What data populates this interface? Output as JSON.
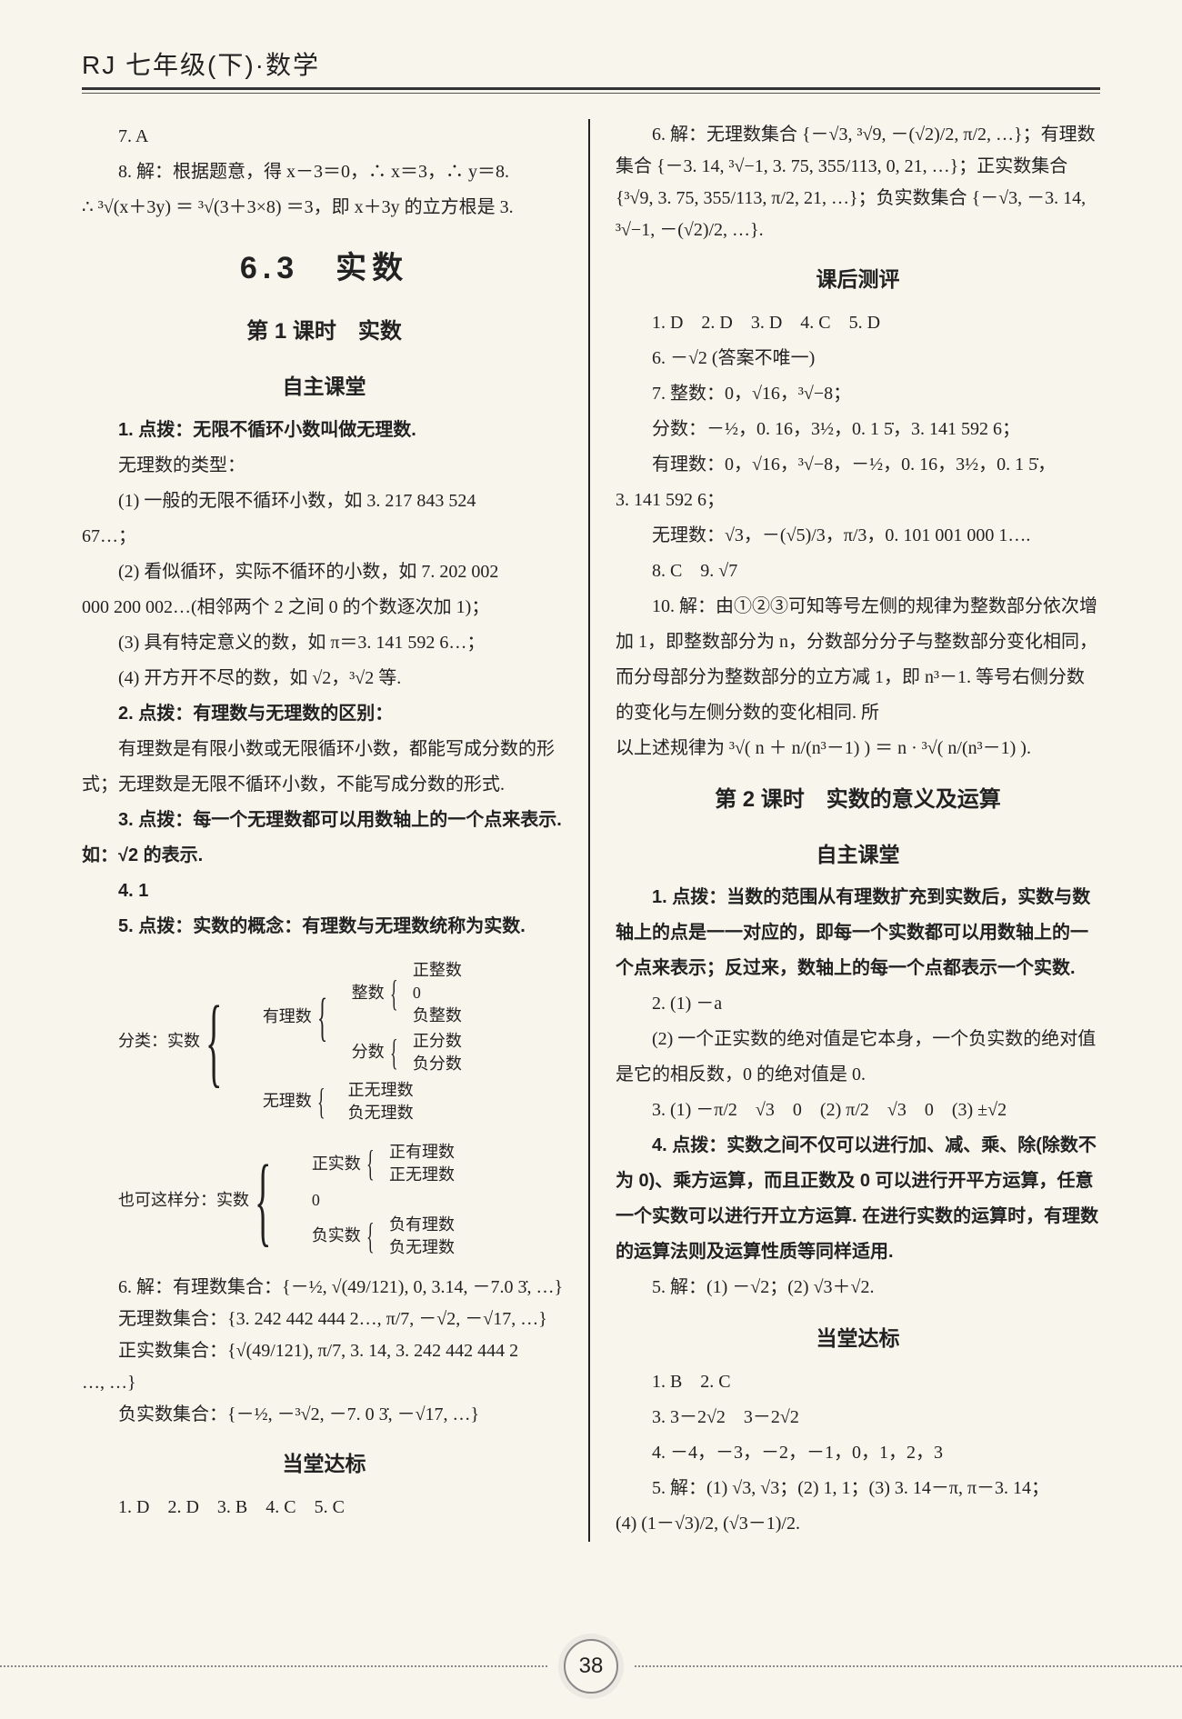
{
  "header": {
    "title": "RJ 七年级(下)·数学"
  },
  "page_number": "38",
  "left": {
    "l01": "7. A",
    "l02_pre": "8. 解：根据题意，得 x－3＝0，∴ x＝3，∴ y＝8.",
    "l03": "∴ ³√(x＋3y) ＝ ³√(3＋3×8) ＝3，即 x＋3y 的立方根是 3.",
    "title_63": "6.3　实数",
    "lesson1": "第 1 课时　实数",
    "zizhu": "自主课堂",
    "l04": "1. 点拨：无限不循环小数叫做无理数.",
    "l05": "无理数的类型：",
    "l06a": "(1) 一般的无限不循环小数，如 3. 217 843 524",
    "l06b": "67…；",
    "l07a": "(2) 看似循环，实际不循环的小数，如 7. 202 002",
    "l07b": "000 200 002…(相邻两个 2 之间 0 的个数逐次加 1)；",
    "l08": "(3) 具有特定意义的数，如 π＝3. 141 592 6…；",
    "l09": "(4) 开方开不尽的数，如 √2，³√2 等.",
    "l10": "2. 点拨：有理数与无理数的区别：",
    "l11": "有理数是有限小数或无限循环小数，都能写成分数的形式；无理数是无限不循环小数，不能写成分数的形式.",
    "l12": "3. 点拨：每一个无理数都可以用数轴上的一个点来表示. 如：√2 的表示.",
    "l13": "4. 1",
    "l14": "5. 点拨：实数的概念：有理数与无理数统称为实数.",
    "tree1_label": "分类：实数",
    "tree1": {
      "a": "有理数",
      "a1": "整数",
      "a1a": "正整数",
      "a1b": "0",
      "a1c": "负整数",
      "a2": "分数",
      "a2a": "正分数",
      "a2b": "负分数",
      "b": "无理数",
      "b1": "正无理数",
      "b2": "负无理数"
    },
    "tree2_label": "也可这样分：实数",
    "tree2": {
      "a": "正实数",
      "a1": "正有理数",
      "a2": "正无理数",
      "b": "0",
      "c": "负实数",
      "c1": "负有理数",
      "c2": "负无理数"
    },
    "l15": "6. 解：有理数集合：{－½, √(49/121), 0, 3.14, －7.0 3̇, …}",
    "l16": "无理数集合：{3. 242 442 444 2…, π/7, －√2, －√17, …}",
    "l17a": "正实数集合：{√(49/121), π/7, 3. 14, 3. 242 442 444 2",
    "l17b": "…, …}",
    "l18": "负实数集合：{－½, －³√2, －7. 0 3̇, －√17, …}",
    "dangtang": "当堂达标",
    "l19": "1. D　2. D　3. B　4. C　5. C"
  },
  "right": {
    "r01a": "6. 解：无理数集合 {－√3, ³√9, －(√2)/2, π/2, …}；有理数",
    "r01b": "集合 {－3. 14, ³√−1, 3. 75, 355/113, 0, 21, …}；正实数集合",
    "r01c": "{³√9, 3. 75, 355/113, π/2, 21, …}；负实数集合 {－√3, －3. 14,",
    "r01d": "³√−1, －(√2)/2, …}.",
    "kehou": "课后测评",
    "r02": "1. D　2. D　3. D　4. C　5. D",
    "r03": "6. －√2 (答案不唯一)",
    "r04": "7. 整数：0，√16，³√−8；",
    "r05": "分数：－½，0. 16，3½，0. 1 5̇，3. 141 592 6；",
    "r06": "有理数：0，√16，³√−8，－½，0. 16，3½，0. 1 5̇，",
    "r06b": "3. 141 592 6；",
    "r07": "无理数：√3，－(√5)/3，π/3，0. 101 001 000 1….",
    "r08": "8. C　9. √7",
    "r09": "10. 解：由①②③可知等号左侧的规律为整数部分依次增加 1，即整数部分为 n，分数部分分子与整数部分变化相同，而分母部分为整数部分的立方减 1，即 n³－1. 等号右侧分数的变化与左侧分数的变化相同. 所",
    "r09b": "以上述规律为 ³√( n ＋ n/(n³－1) ) ＝ n · ³√( n/(n³－1) ).",
    "lesson2": "第 2 课时　实数的意义及运算",
    "zizhu2": "自主课堂",
    "r10": "1. 点拨：当数的范围从有理数扩充到实数后，实数与数轴上的点是一一对应的，即每一个实数都可以用数轴上的一个点来表示；反过来，数轴上的每一个点都表示一个实数.",
    "r11": "2. (1) －a",
    "r12": "(2) 一个正实数的绝对值是它本身，一个负实数的绝对值是它的相反数，0 的绝对值是 0.",
    "r13": "3. (1) －π/2　√3　0　(2) π/2　√3　0　(3) ±√2",
    "r14": "4. 点拨：实数之间不仅可以进行加、减、乘、除(除数不为 0)、乘方运算，而且正数及 0 可以进行开平方运算，任意一个实数可以进行开立方运算. 在进行实数的运算时，有理数的运算法则及运算性质等同样适用.",
    "r15": "5. 解：(1) －√2；(2) √3＋√2.",
    "dangtang2": "当堂达标",
    "r16": "1. B　2. C",
    "r17": "3. 3－2√2　3－2√2",
    "r18": "4. －4，－3，－2，－1，0，1，2，3",
    "r19": "5. 解：(1) √3, √3；(2) 1, 1；(3) 3. 14－π, π－3. 14；",
    "r20": "(4) (1－√3)/2, (√3－1)/2."
  }
}
